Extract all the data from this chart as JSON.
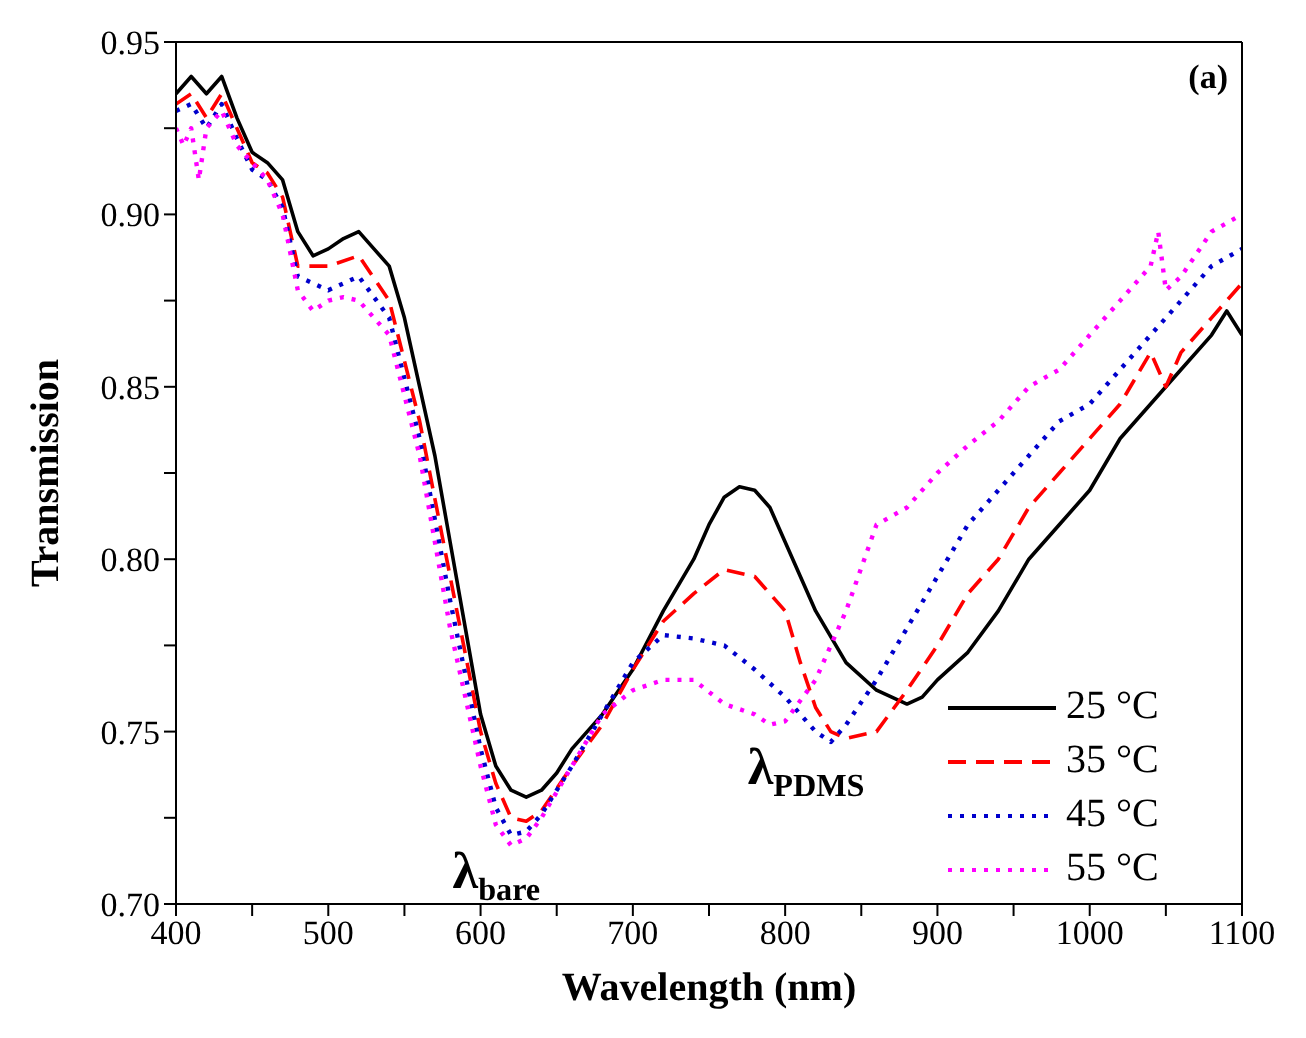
{
  "chart_data": {
    "type": "line",
    "xlabel": "Wavelength (nm)",
    "ylabel": "Transmission",
    "xlim": [
      400,
      1100
    ],
    "ylim": [
      0.7,
      0.95
    ],
    "xticks": [
      400,
      {
        "value": 450,
        "label": null
      },
      500,
      {
        "value": 550,
        "label": null
      },
      600,
      {
        "value": 650,
        "label": null
      },
      700,
      {
        "value": 750,
        "label": null
      },
      800,
      {
        "value": 850,
        "label": null
      },
      900,
      {
        "value": 950,
        "label": null
      },
      1000,
      {
        "value": 1050,
        "label": null
      },
      1100
    ],
    "yticks": [
      {
        "value": 0.7,
        "label": "0.70"
      },
      {
        "value": 0.725,
        "label": null
      },
      {
        "value": 0.75,
        "label": "0.75"
      },
      {
        "value": 0.775,
        "label": null
      },
      {
        "value": 0.8,
        "label": "0.80"
      },
      {
        "value": 0.825,
        "label": null
      },
      {
        "value": 0.85,
        "label": "0.85"
      },
      {
        "value": 0.875,
        "label": null
      },
      {
        "value": 0.9,
        "label": "0.90"
      },
      {
        "value": 0.925,
        "label": null
      },
      {
        "value": 0.95,
        "label": "0.95"
      }
    ],
    "legend": "bottom right",
    "marker": "none",
    "annotations": [
      "(a)",
      "λ$_{bare}$",
      "λ$_{PDMS}$"
    ],
    "series": [
      {
        "name": "25 °C",
        "color": "#000000",
        "line_style": "solid",
        "x": [
          400,
          410,
          420,
          430,
          440,
          450,
          460,
          470,
          480,
          490,
          500,
          510,
          520,
          530,
          540,
          550,
          560,
          570,
          580,
          590,
          600,
          610,
          620,
          630,
          640,
          650,
          660,
          680,
          700,
          720,
          740,
          750,
          760,
          770,
          780,
          790,
          800,
          820,
          840,
          860,
          880,
          890,
          900,
          920,
          940,
          960,
          980,
          1000,
          1020,
          1040,
          1060,
          1080,
          1090,
          1100
        ],
        "values": [
          0.935,
          0.94,
          0.935,
          0.94,
          0.928,
          0.918,
          0.915,
          0.91,
          0.895,
          0.888,
          0.89,
          0.893,
          0.895,
          0.89,
          0.885,
          0.87,
          0.85,
          0.83,
          0.805,
          0.78,
          0.755,
          0.74,
          0.733,
          0.731,
          0.733,
          0.738,
          0.745,
          0.755,
          0.768,
          0.785,
          0.8,
          0.81,
          0.818,
          0.821,
          0.82,
          0.815,
          0.805,
          0.785,
          0.77,
          0.762,
          0.758,
          0.76,
          0.765,
          0.773,
          0.785,
          0.8,
          0.81,
          0.82,
          0.835,
          0.845,
          0.855,
          0.865,
          0.872,
          0.865
        ]
      },
      {
        "name": "35 °C",
        "color": "#ff0000",
        "line_style": "dashed",
        "x": [
          400,
          410,
          420,
          430,
          440,
          450,
          460,
          470,
          480,
          500,
          520,
          540,
          560,
          580,
          600,
          610,
          620,
          630,
          640,
          660,
          680,
          700,
          720,
          740,
          760,
          780,
          800,
          810,
          820,
          830,
          840,
          860,
          880,
          900,
          920,
          940,
          960,
          980,
          1000,
          1020,
          1040,
          1050,
          1060,
          1080,
          1100
        ],
        "values": [
          0.932,
          0.935,
          0.928,
          0.935,
          0.925,
          0.915,
          0.912,
          0.905,
          0.885,
          0.885,
          0.888,
          0.875,
          0.84,
          0.795,
          0.75,
          0.735,
          0.725,
          0.724,
          0.727,
          0.74,
          0.752,
          0.768,
          0.782,
          0.79,
          0.797,
          0.795,
          0.785,
          0.77,
          0.757,
          0.75,
          0.748,
          0.75,
          0.762,
          0.775,
          0.79,
          0.8,
          0.815,
          0.825,
          0.835,
          0.845,
          0.86,
          0.85,
          0.86,
          0.87,
          0.88
        ]
      },
      {
        "name": "45 °C",
        "color": "#0000cc",
        "line_style": "dotted",
        "x": [
          400,
          410,
          420,
          430,
          440,
          450,
          460,
          470,
          480,
          500,
          520,
          540,
          560,
          580,
          600,
          610,
          620,
          630,
          640,
          660,
          680,
          700,
          720,
          740,
          760,
          780,
          800,
          820,
          830,
          840,
          860,
          880,
          900,
          920,
          940,
          960,
          980,
          1000,
          1020,
          1040,
          1060,
          1080,
          1100
        ],
        "values": [
          0.93,
          0.932,
          0.925,
          0.932,
          0.922,
          0.913,
          0.91,
          0.902,
          0.882,
          0.878,
          0.882,
          0.87,
          0.835,
          0.788,
          0.745,
          0.728,
          0.72,
          0.721,
          0.726,
          0.74,
          0.755,
          0.77,
          0.778,
          0.777,
          0.775,
          0.768,
          0.76,
          0.75,
          0.747,
          0.752,
          0.765,
          0.78,
          0.795,
          0.81,
          0.82,
          0.83,
          0.84,
          0.845,
          0.855,
          0.865,
          0.875,
          0.885,
          0.89
        ]
      },
      {
        "name": "55 °C",
        "color": "#ff00ff",
        "line_style": "dotted",
        "x": [
          400,
          405,
          410,
          415,
          420,
          430,
          440,
          450,
          460,
          470,
          480,
          490,
          500,
          510,
          520,
          540,
          560,
          580,
          600,
          610,
          620,
          630,
          640,
          660,
          680,
          700,
          720,
          740,
          760,
          780,
          790,
          800,
          820,
          840,
          860,
          880,
          900,
          920,
          940,
          960,
          980,
          1000,
          1020,
          1040,
          1045,
          1050,
          1060,
          1080,
          1100
        ],
        "values": [
          0.925,
          0.92,
          0.925,
          0.91,
          0.925,
          0.93,
          0.92,
          0.915,
          0.91,
          0.9,
          0.878,
          0.872,
          0.875,
          0.876,
          0.875,
          0.865,
          0.83,
          0.78,
          0.74,
          0.723,
          0.717,
          0.719,
          0.725,
          0.74,
          0.755,
          0.762,
          0.765,
          0.765,
          0.758,
          0.755,
          0.752,
          0.753,
          0.765,
          0.785,
          0.81,
          0.815,
          0.825,
          0.833,
          0.84,
          0.85,
          0.855,
          0.865,
          0.875,
          0.885,
          0.895,
          0.878,
          0.882,
          0.895,
          0.9
        ]
      }
    ]
  }
}
